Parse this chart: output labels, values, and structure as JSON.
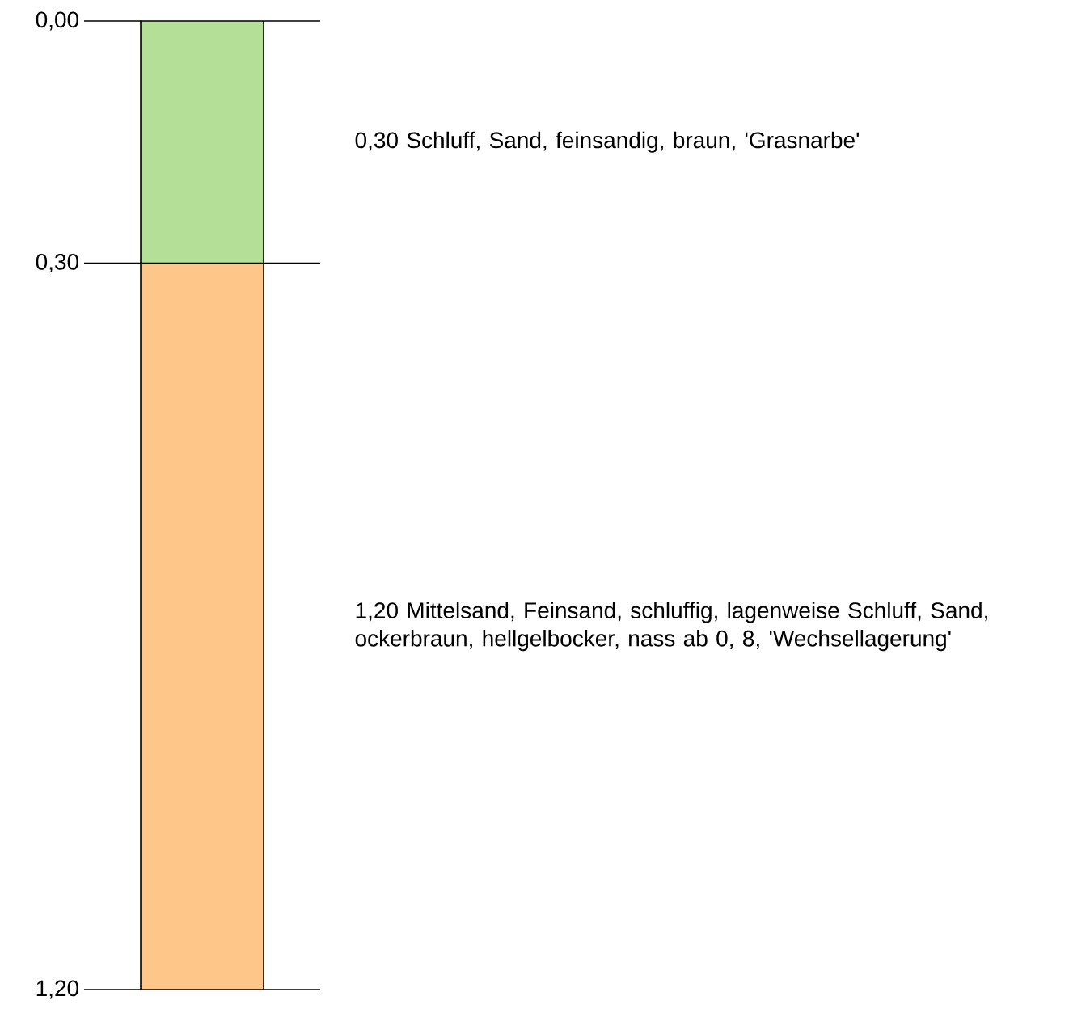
{
  "chart_data": {
    "type": "bar",
    "stacked": true,
    "categories": [
      null
    ],
    "series": [
      {
        "color": "#b3df96",
        "values": [
          0.3
        ]
      },
      {
        "color": "#ffc68a",
        "values": [
          0.9
        ]
      }
    ],
    "ylim": [
      1.2,
      0
    ],
    "yticks": [
      {
        "value": 0,
        "label": "0,00"
      },
      {
        "value": 0.3,
        "label": "0,30"
      },
      {
        "value": 1.2,
        "label": "1,20"
      }
    ],
    "annotations": [
      "0,30  Schluff, Sand, feinsandig, braun, 'Grasnarbe'",
      "1,20  Mittelsand, Feinsand, schluffig, lagenweise Schluff, Sand, ockerbraun, hellgelbocker, nass ab 0, 8, 'Wechsellagerung'"
    ]
  }
}
